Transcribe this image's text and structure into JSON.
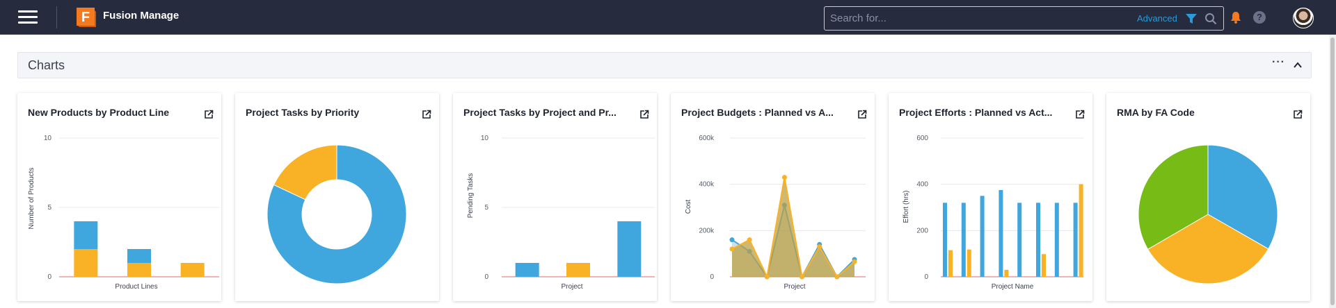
{
  "header": {
    "app_title": "Fusion Manage",
    "logo_letter": "F",
    "search_placeholder": "Search for...",
    "advanced_label": "Advanced",
    "help_label": "?"
  },
  "section": {
    "title": "Charts",
    "more_label": "···"
  },
  "colors": {
    "blue": "#3fa7de",
    "orange": "#f9b125",
    "green": "#77bb17",
    "axis_red": "#e4686a",
    "topbar": "#262b3d"
  },
  "cards": [
    {
      "title": "New Products by Product Line"
    },
    {
      "title": "Project Tasks by Priority"
    },
    {
      "title": "Project Tasks by Project and Pr..."
    },
    {
      "title": "Project Budgets : Planned vs A..."
    },
    {
      "title": "Project Efforts : Planned vs Act..."
    },
    {
      "title": "RMA by FA Code"
    }
  ],
  "chart_data": [
    {
      "type": "bar",
      "title": "New Products by Product Line",
      "xlabel": "Product Lines",
      "ylabel": "Number of Products",
      "ylim": [
        0,
        10
      ],
      "yticks": [
        "10",
        "5",
        "0"
      ],
      "stacked": true,
      "categories": [
        "",
        "",
        ""
      ],
      "series": [
        {
          "color": "#f9b125",
          "values": [
            2,
            1,
            1
          ]
        },
        {
          "color": "#3fa7de",
          "values": [
            2,
            1,
            0
          ]
        }
      ]
    },
    {
      "type": "pie",
      "title": "Project Tasks by Priority",
      "donut": true,
      "slices": [
        {
          "color": "#3fa7de",
          "value": 82
        },
        {
          "color": "#f9b125",
          "value": 18
        }
      ]
    },
    {
      "type": "bar",
      "title": "Project Tasks by Project and Pr...",
      "xlabel": "Project",
      "ylabel": "Pending Tasks",
      "ylim": [
        0,
        10
      ],
      "yticks": [
        "10",
        "5",
        "0"
      ],
      "bars": [
        {
          "color": "#3fa7de",
          "value": 1
        },
        {
          "color": "#f9b125",
          "value": 1
        },
        {
          "color": "#3fa7de",
          "value": 4
        }
      ]
    },
    {
      "type": "area",
      "title": "Project Budgets : Planned vs A...",
      "xlabel": "Project",
      "ylabel": "Cost",
      "ylim": [
        0,
        600000
      ],
      "yticks": [
        "600k",
        "400k",
        "200k",
        "0"
      ],
      "series": [
        {
          "color": "#3fa7de",
          "values": [
            160000,
            110000,
            0,
            310000,
            0,
            140000,
            0,
            75000
          ]
        },
        {
          "color": "#f9b125",
          "values": [
            120000,
            160000,
            0,
            430000,
            0,
            130000,
            0,
            65000
          ]
        }
      ]
    },
    {
      "type": "bar",
      "title": "Project Efforts : Planned vs Act...",
      "xlabel": "Project Name",
      "ylabel": "Effort (hrs)",
      "ylim": [
        0,
        600
      ],
      "yticks": [
        "600",
        "400",
        "200",
        "0"
      ],
      "series": [
        {
          "color": "#3fa7de",
          "values": [
            320,
            320,
            350,
            375,
            320,
            320,
            320,
            320
          ]
        },
        {
          "color": "#f9b125",
          "values": [
            115,
            118,
            0,
            30,
            0,
            98,
            0,
            400
          ]
        }
      ]
    },
    {
      "type": "pie",
      "title": "RMA by FA Code",
      "slices": [
        {
          "color": "#3fa7de",
          "value": 33.3
        },
        {
          "color": "#f9b125",
          "value": 33.3
        },
        {
          "color": "#77bb17",
          "value": 33.4
        }
      ]
    }
  ]
}
